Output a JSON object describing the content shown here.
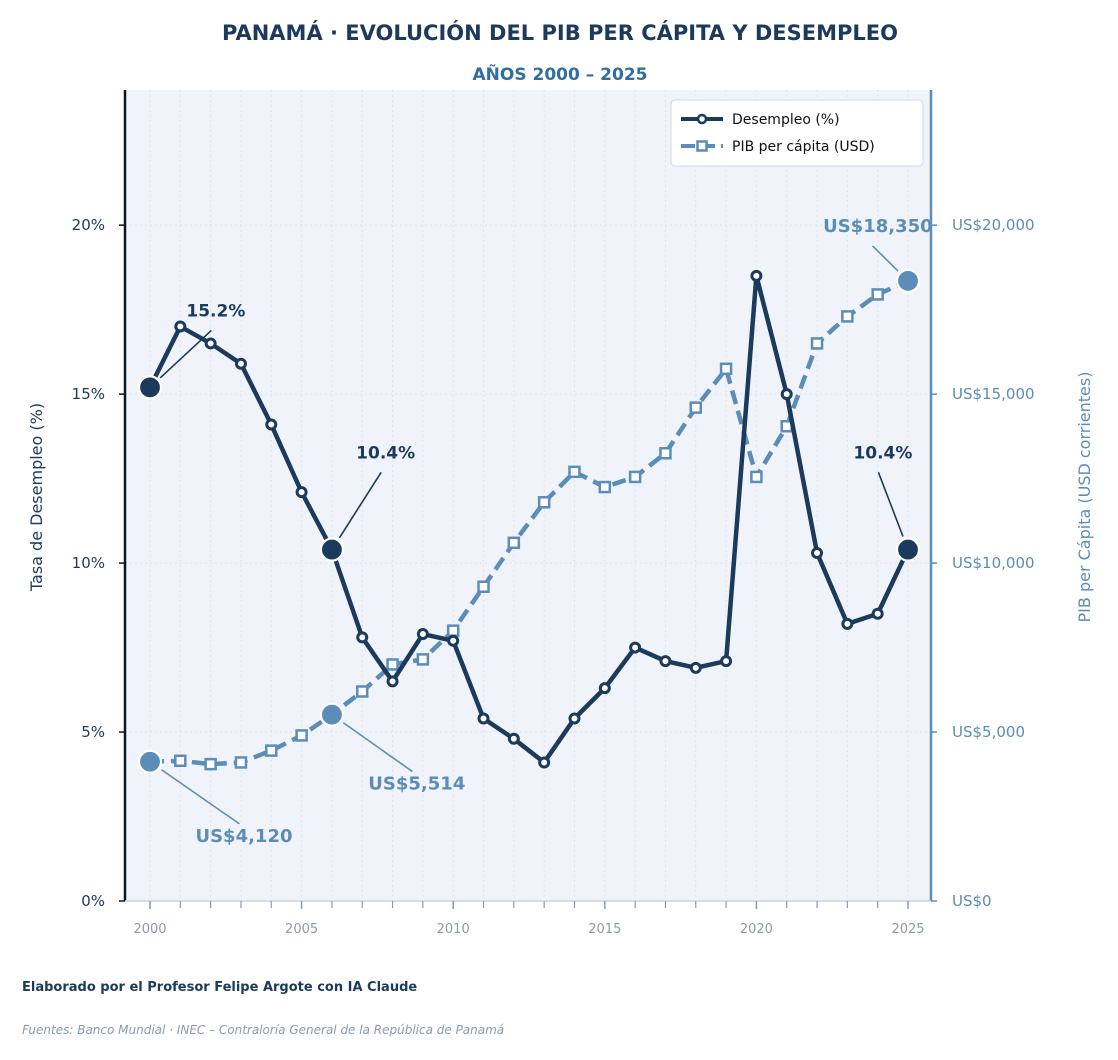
{
  "title": "PANAMÁ · EVOLUCIÓN DEL PIB PER CÁPITA Y DESEMPLEO",
  "subtitle": "AÑOS 2000 – 2025",
  "credit": "Elaborado por el Profesor Felipe Argote con IA Claude",
  "source": "Fuentes: Banco Mundial · INEC – Contraloría General de la República de Panamá",
  "colors": {
    "unemployment": "#1b3a5c",
    "gdp": "#5b8db8",
    "plot_bg": "#f0f4fa"
  },
  "chart_data": {
    "type": "line",
    "dual_axis": true,
    "grid": true,
    "legend_position": "top-right",
    "x": [
      2000,
      2001,
      2002,
      2003,
      2004,
      2005,
      2006,
      2007,
      2008,
      2009,
      2010,
      2011,
      2012,
      2013,
      2014,
      2015,
      2016,
      2017,
      2018,
      2019,
      2020,
      2021,
      2022,
      2023,
      2024,
      2025
    ],
    "xlim": [
      2000,
      2025
    ],
    "x_ticks": [
      2000,
      2005,
      2010,
      2015,
      2020,
      2025
    ],
    "x_tick_labels": [
      "2000",
      "2005",
      "2010",
      "2015",
      "2020",
      "2025"
    ],
    "series": [
      {
        "name": "Desempleo (%)",
        "axis": "left",
        "style": "solid",
        "marker": "circle",
        "values": [
          15.2,
          17.0,
          16.5,
          15.9,
          14.1,
          12.1,
          10.4,
          7.8,
          6.5,
          7.9,
          7.7,
          5.4,
          4.8,
          4.1,
          5.4,
          6.3,
          7.5,
          7.1,
          6.9,
          7.1,
          18.5,
          15.0,
          10.3,
          8.2,
          8.5,
          10.4
        ]
      },
      {
        "name": "PIB per cápita (USD)",
        "axis": "right",
        "style": "dashed",
        "marker": "square",
        "values": [
          4120,
          4150,
          4050,
          4100,
          4450,
          4900,
          5514,
          6200,
          7000,
          7150,
          8000,
          9300,
          10600,
          11800,
          12700,
          12250,
          12550,
          13250,
          14600,
          15750,
          12550,
          14050,
          16500,
          17300,
          17950,
          18350
        ]
      }
    ],
    "y_left": {
      "label": "Tasa de Desempleo (%)",
      "ylim": [
        0,
        24
      ],
      "ticks": [
        0,
        5,
        10,
        15,
        20
      ],
      "tick_labels": [
        "0%",
        "5%",
        "10%",
        "15%",
        "20%"
      ]
    },
    "y_right": {
      "label": "PIB per Cápita (USD corrientes)",
      "ylim": [
        0,
        24000
      ],
      "ticks": [
        0,
        5000,
        10000,
        15000,
        20000
      ],
      "tick_labels": [
        "US$0",
        "US$5,000",
        "US$10,000",
        "US$15,000",
        "US$20,000"
      ]
    },
    "annotations": [
      {
        "text": "15.2%",
        "series": 0,
        "x": 2000,
        "y": 15.2,
        "text_x": 2001.2,
        "text_y": 17.3
      },
      {
        "text": "10.4%",
        "series": 0,
        "x": 2006,
        "y": 10.4,
        "text_x": 2006.8,
        "text_y": 13.1
      },
      {
        "text": "10.4%",
        "series": 0,
        "x": 2025,
        "y": 10.4,
        "text_x": 2023.2,
        "text_y": 13.1
      },
      {
        "text": "US$4,120",
        "series": 1,
        "x": 2000,
        "y": 4120,
        "text_x": 2001.5,
        "text_y": 1750
      },
      {
        "text": "US$5,514",
        "series": 1,
        "x": 2006,
        "y": 5514,
        "text_x": 2007.2,
        "text_y": 3300
      },
      {
        "text": "US$18,350",
        "series": 1,
        "x": 2025,
        "y": 18350,
        "text_x": 2022.2,
        "text_y": 19800
      }
    ]
  }
}
